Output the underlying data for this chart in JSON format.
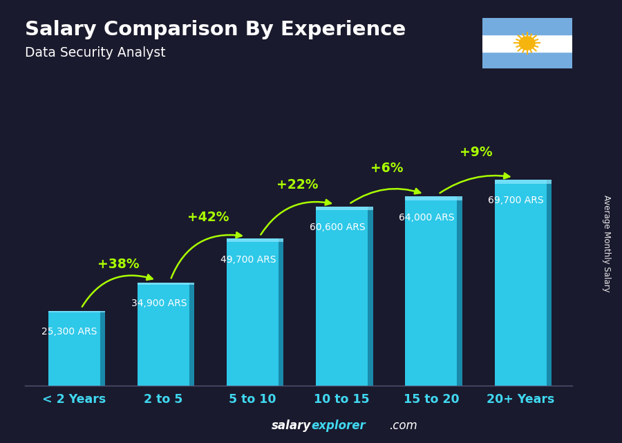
{
  "title": "Salary Comparison By Experience",
  "subtitle": "Data Security Analyst",
  "categories": [
    "< 2 Years",
    "2 to 5",
    "5 to 10",
    "10 to 15",
    "15 to 20",
    "20+ Years"
  ],
  "values": [
    25300,
    34900,
    49700,
    60600,
    64000,
    69700
  ],
  "labels": [
    "25,300 ARS",
    "34,900 ARS",
    "49,700 ARS",
    "60,600 ARS",
    "64,000 ARS",
    "69,700 ARS"
  ],
  "pct_changes": [
    "+38%",
    "+42%",
    "+22%",
    "+6%",
    "+9%"
  ],
  "face_color": "#2ec8e8",
  "side_color": "#1a8aaa",
  "top_color": "#90e8ff",
  "bg_color": "#1a1a2e",
  "title_color": "#ffffff",
  "subtitle_color": "#ffffff",
  "label_color": "#ffffff",
  "pct_color": "#aaff00",
  "tick_color": "#40d8f0",
  "footer_color_salary": "#ffffff",
  "footer_color_explorer": "#40d8f0",
  "footer_color_com": "#ffffff",
  "ylabel_text": "Average Monthly Salary",
  "ylim": [
    0,
    90000
  ],
  "bar_width": 0.58
}
